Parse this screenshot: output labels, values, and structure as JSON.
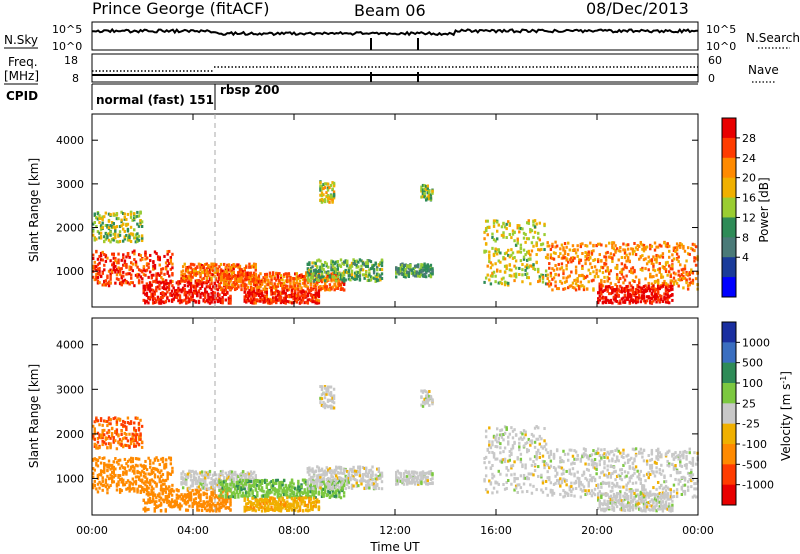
{
  "header": {
    "station": "Prince George (fitACF)",
    "beam": "Beam 06",
    "date": "08/Dec/2013"
  },
  "summary_panels": {
    "nsky_label": "N.Sky",
    "nsky_top": "10^5",
    "nsky_bottom": "10^0",
    "nsearch_top": "10^5",
    "nsearch_bottom": "10^0",
    "nsearch_label": "N.Search",
    "freq_label_1": "Freq.",
    "freq_label_2": "[MHz]",
    "freq_top": "18",
    "freq_bottom": "8",
    "nave_top": "60",
    "nave_bottom": "0",
    "nave_label": "Nave",
    "cpid_label": "CPID",
    "cpid_modes": [
      {
        "label": "normal (fast) 151",
        "start_hour": 0,
        "end_hour": 5.1
      },
      {
        "label": "rbsp 200",
        "start_hour": 5.1,
        "end_hour": 24
      }
    ]
  },
  "chart_data": [
    {
      "type": "heatmap",
      "name": "Power",
      "xlabel": "",
      "ylabel": "Slant Range [km]",
      "xlim": [
        0,
        24
      ],
      "ylim": [
        180,
        4600
      ],
      "yticks": [
        1000,
        2000,
        3000,
        4000
      ],
      "colorbar": {
        "label": "Power [dB]",
        "ticks": [
          "28",
          "24",
          "20",
          "16",
          "12",
          "8",
          "4"
        ],
        "colors": [
          "#e80000",
          "#ff3c00",
          "#ff8a00",
          "#f0b000",
          "#9acd32",
          "#2e8b57",
          "#4a7a78",
          "#1a3b9a",
          "#0000ff"
        ]
      }
    },
    {
      "type": "heatmap",
      "name": "Velocity",
      "xlabel": "Time UT",
      "ylabel": "Slant Range [km]",
      "xlim": [
        0,
        24
      ],
      "ylim": [
        180,
        4600
      ],
      "yticks": [
        1000,
        2000,
        3000,
        4000
      ],
      "xticks": [
        "00:00",
        "04:00",
        "08:00",
        "12:00",
        "16:00",
        "20:00",
        "00:00"
      ],
      "colorbar": {
        "label": "Velocity [m s^-1]",
        "ticks": [
          "1000",
          "500",
          "100",
          "25",
          "-25",
          "-100",
          "-500",
          "-1000"
        ],
        "colors": [
          "#1a2fa0",
          "#3a6ec0",
          "#2e8b57",
          "#7cc840",
          "#c8c8c8",
          "#f0b000",
          "#ff8a00",
          "#ff3c00",
          "#e80000"
        ]
      }
    }
  ],
  "echo_regions": [
    {
      "t0": 0.0,
      "t1": 3.2,
      "r0": 700,
      "r1": 1500,
      "power": 25,
      "velocity": -300
    },
    {
      "t0": 0.0,
      "t1": 2.0,
      "r0": 1700,
      "r1": 2400,
      "power": 12,
      "velocity": -500
    },
    {
      "t0": 2.0,
      "t1": 5.5,
      "r0": 300,
      "r1": 800,
      "power": 28,
      "velocity": -400
    },
    {
      "t0": 3.5,
      "t1": 6.5,
      "r0": 800,
      "r1": 1200,
      "power": 22,
      "velocity": 0
    },
    {
      "t0": 5.0,
      "t1": 10.0,
      "r0": 600,
      "r1": 1000,
      "power": 22,
      "velocity": 80
    },
    {
      "t0": 6.0,
      "t1": 9.0,
      "r0": 300,
      "r1": 600,
      "power": 26,
      "velocity": -80
    },
    {
      "t0": 8.5,
      "t1": 11.5,
      "r0": 800,
      "r1": 1300,
      "power": 10,
      "velocity": 0
    },
    {
      "t0": 9.0,
      "t1": 9.6,
      "r0": 2600,
      "r1": 3100,
      "power": 14,
      "velocity": 0
    },
    {
      "t0": 12.0,
      "t1": 13.5,
      "r0": 900,
      "r1": 1200,
      "power": 8,
      "velocity": 0
    },
    {
      "t0": 13.0,
      "t1": 13.5,
      "r0": 2650,
      "r1": 3000,
      "power": 12,
      "velocity": 0
    },
    {
      "t0": 15.5,
      "t1": 18.0,
      "r0": 700,
      "r1": 2200,
      "power": 14,
      "velocity": 0
    },
    {
      "t0": 18.0,
      "t1": 24.0,
      "r0": 600,
      "r1": 1700,
      "power": 20,
      "velocity": 0
    },
    {
      "t0": 20.0,
      "t1": 23.0,
      "r0": 300,
      "r1": 700,
      "power": 28,
      "velocity": 0
    }
  ]
}
